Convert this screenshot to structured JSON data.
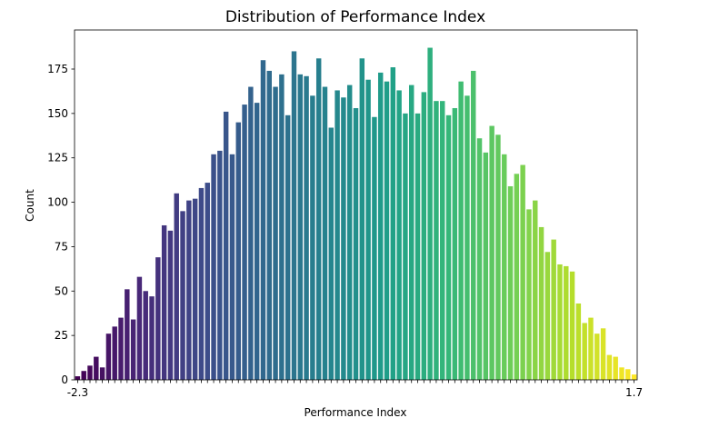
{
  "chart_data": {
    "type": "bar",
    "title": "Distribution of Performance Index",
    "xlabel": "Performance Index",
    "ylabel": "Count",
    "ylim": [
      0,
      197
    ],
    "yticks": [
      0,
      25,
      50,
      75,
      100,
      125,
      150,
      175
    ],
    "grid": false,
    "legend": "none",
    "colormap": "viridis",
    "values": [
      2,
      5,
      8,
      13,
      7,
      26,
      30,
      35,
      51,
      34,
      58,
      50,
      47,
      69,
      87,
      84,
      105,
      95,
      101,
      102,
      108,
      111,
      127,
      129,
      151,
      127,
      145,
      155,
      165,
      156,
      180,
      174,
      165,
      172,
      149,
      185,
      172,
      171,
      160,
      181,
      165,
      142,
      163,
      159,
      166,
      153,
      181,
      169,
      148,
      173,
      168,
      176,
      163,
      150,
      166,
      150,
      162,
      187,
      157,
      157,
      149,
      153,
      168,
      160,
      174,
      136,
      128,
      143,
      138,
      127,
      109,
      116,
      121,
      96,
      101,
      86,
      72,
      79,
      65,
      64,
      61,
      43,
      32,
      35,
      26,
      29,
      14,
      13,
      7,
      6,
      3
    ],
    "x_tick_labels_visible": [
      "-2.3",
      "1.7"
    ]
  }
}
